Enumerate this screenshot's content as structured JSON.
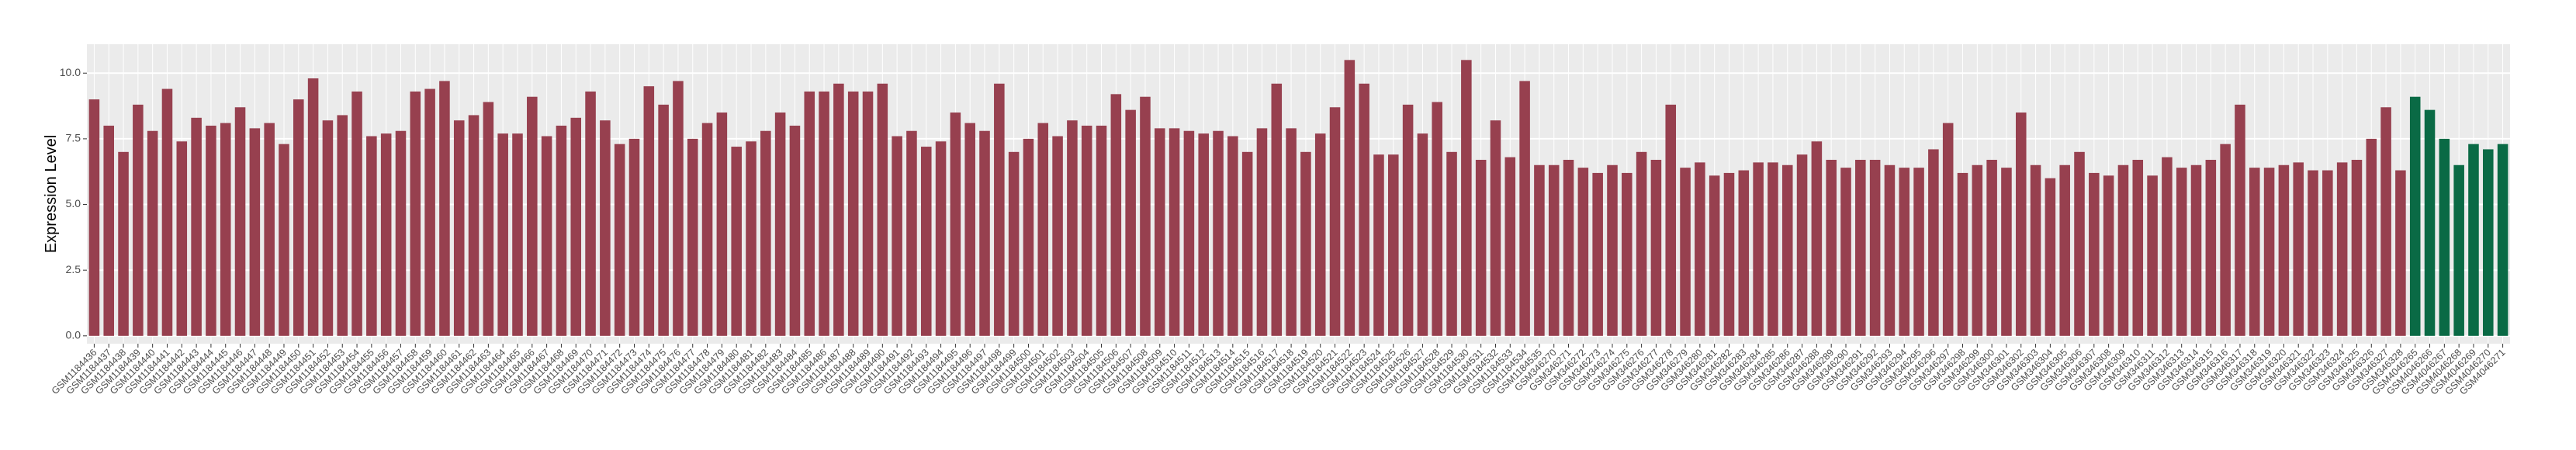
{
  "chart_data": {
    "type": "bar",
    "y_label": "Expression Level",
    "ylim": [
      -0.3,
      11.1
    ],
    "yticks": [
      {
        "value": 0,
        "label": "0.0"
      },
      {
        "value": 2.5,
        "label": "2.5"
      },
      {
        "value": 5,
        "label": "5.0"
      },
      {
        "value": 7.5,
        "label": "7.5"
      },
      {
        "value": 10,
        "label": "10.0"
      }
    ],
    "grid": true,
    "categories": [
      "GSM1184436",
      "GSM1184437",
      "GSM1184438",
      "GSM1184439",
      "GSM1184440",
      "GSM1184441",
      "GSM1184442",
      "GSM1184443",
      "GSM1184444",
      "GSM1184445",
      "GSM1184446",
      "GSM1184447",
      "GSM1184448",
      "GSM1184449",
      "GSM1184450",
      "GSM1184451",
      "GSM1184452",
      "GSM1184453",
      "GSM1184454",
      "GSM1184455",
      "GSM1184456",
      "GSM1184457",
      "GSM1184458",
      "GSM1184459",
      "GSM1184460",
      "GSM1184461",
      "GSM1184462",
      "GSM1184463",
      "GSM1184464",
      "GSM1184465",
      "GSM1184466",
      "GSM1184467",
      "GSM1184468",
      "GSM1184469",
      "GSM1184470",
      "GSM1184471",
      "GSM1184472",
      "GSM1184473",
      "GSM1184474",
      "GSM1184475",
      "GSM1184476",
      "GSM1184477",
      "GSM1184478",
      "GSM1184479",
      "GSM1184480",
      "GSM1184481",
      "GSM1184482",
      "GSM1184483",
      "GSM1184484",
      "GSM1184485",
      "GSM1184486",
      "GSM1184487",
      "GSM1184488",
      "GSM1184489",
      "GSM1184490",
      "GSM1184491",
      "GSM1184492",
      "GSM1184493",
      "GSM1184494",
      "GSM1184495",
      "GSM1184496",
      "GSM1184497",
      "GSM1184498",
      "GSM1184499",
      "GSM1184500",
      "GSM1184501",
      "GSM1184502",
      "GSM1184503",
      "GSM1184504",
      "GSM1184505",
      "GSM1184506",
      "GSM1184507",
      "GSM1184508",
      "GSM1184509",
      "GSM1184510",
      "GSM1184511",
      "GSM1184512",
      "GSM1184513",
      "GSM1184514",
      "GSM1184515",
      "GSM1184516",
      "GSM1184517",
      "GSM1184518",
      "GSM1184519",
      "GSM1184520",
      "GSM1184521",
      "GSM1184522",
      "GSM1184523",
      "GSM1184524",
      "GSM1184525",
      "GSM1184526",
      "GSM1184527",
      "GSM1184528",
      "GSM1184529",
      "GSM1184530",
      "GSM1184531",
      "GSM1184532",
      "GSM1184533",
      "GSM1184534",
      "GSM1184535",
      "GSM346270",
      "GSM346271",
      "GSM346272",
      "GSM346273",
      "GSM346274",
      "GSM346275",
      "GSM346276",
      "GSM346277",
      "GSM346278",
      "GSM346279",
      "GSM346280",
      "GSM346281",
      "GSM346282",
      "GSM346283",
      "GSM346284",
      "GSM346285",
      "GSM346286",
      "GSM346287",
      "GSM346288",
      "GSM346289",
      "GSM346290",
      "GSM346291",
      "GSM346292",
      "GSM346293",
      "GSM346294",
      "GSM346295",
      "GSM346296",
      "GSM346297",
      "GSM346298",
      "GSM346299",
      "GSM346300",
      "GSM346301",
      "GSM346302",
      "GSM346303",
      "GSM346304",
      "GSM346305",
      "GSM346306",
      "GSM346307",
      "GSM346308",
      "GSM346309",
      "GSM346310",
      "GSM346311",
      "GSM346312",
      "GSM346313",
      "GSM346314",
      "GSM346315",
      "GSM346316",
      "GSM346317",
      "GSM346318",
      "GSM346319",
      "GSM346320",
      "GSM346321",
      "GSM346322",
      "GSM346323",
      "GSM346324",
      "GSM346325",
      "GSM346326",
      "GSM346327",
      "GSM346328",
      "GSM4046265",
      "GSM4046266",
      "GSM4046267",
      "GSM4046268",
      "GSM4046269",
      "GSM4046270",
      "GSM4046271"
    ],
    "values": [
      9.0,
      8.0,
      7.0,
      8.8,
      7.8,
      9.4,
      7.4,
      8.3,
      8.0,
      8.1,
      8.7,
      7.9,
      8.1,
      7.3,
      9.0,
      9.8,
      8.2,
      8.4,
      9.3,
      7.6,
      7.7,
      7.8,
      9.3,
      9.4,
      9.7,
      8.2,
      8.4,
      8.9,
      7.7,
      7.7,
      9.1,
      7.6,
      8.0,
      8.3,
      9.3,
      8.2,
      7.3,
      7.5,
      9.5,
      8.8,
      9.7,
      7.5,
      8.1,
      8.5,
      7.2,
      7.4,
      7.8,
      8.5,
      8.0,
      9.3,
      9.3,
      9.6,
      9.3,
      9.3,
      9.6,
      7.6,
      7.8,
      7.2,
      7.4,
      8.5,
      8.1,
      7.8,
      9.6,
      7.0,
      7.5,
      8.1,
      7.6,
      8.2,
      8.0,
      8.0,
      9.2,
      8.6,
      9.1,
      7.9,
      7.9,
      7.8,
      7.7,
      7.8,
      7.6,
      7.0,
      7.9,
      9.6,
      7.9,
      7.0,
      7.7,
      8.7,
      10.5,
      9.6,
      6.9,
      6.9,
      8.8,
      7.7,
      8.9,
      7.0,
      10.5,
      6.7,
      8.2,
      6.8,
      9.7,
      6.5,
      6.5,
      6.7,
      6.4,
      6.2,
      6.5,
      6.2,
      7.0,
      6.7,
      8.8,
      6.4,
      6.6,
      6.1,
      6.2,
      6.3,
      6.6,
      6.6,
      6.5,
      6.9,
      7.4,
      6.7,
      6.4,
      6.7,
      6.7,
      6.5,
      6.4,
      6.4,
      7.1,
      8.1,
      6.2,
      6.5,
      6.7,
      6.4,
      8.5,
      6.5,
      6.0,
      6.5,
      7.0,
      6.2,
      6.1,
      6.5,
      6.7,
      6.1,
      6.8,
      6.4,
      6.5,
      6.7,
      7.3,
      8.8,
      6.4,
      6.4,
      6.5,
      6.6,
      6.3,
      6.3,
      6.6,
      6.7,
      7.5,
      8.7,
      6.3,
      9.1,
      8.6,
      7.5,
      6.5,
      7.3,
      7.1,
      7.3
    ],
    "colors": [
      "#97404f",
      "#97404f",
      "#97404f",
      "#97404f",
      "#97404f",
      "#97404f",
      "#97404f",
      "#97404f",
      "#97404f",
      "#97404f",
      "#97404f",
      "#97404f",
      "#97404f",
      "#97404f",
      "#97404f",
      "#97404f",
      "#97404f",
      "#97404f",
      "#97404f",
      "#97404f",
      "#97404f",
      "#97404f",
      "#97404f",
      "#97404f",
      "#97404f",
      "#97404f",
      "#97404f",
      "#97404f",
      "#97404f",
      "#97404f",
      "#97404f",
      "#97404f",
      "#97404f",
      "#97404f",
      "#97404f",
      "#97404f",
      "#97404f",
      "#97404f",
      "#97404f",
      "#97404f",
      "#97404f",
      "#97404f",
      "#97404f",
      "#97404f",
      "#97404f",
      "#97404f",
      "#97404f",
      "#97404f",
      "#97404f",
      "#97404f",
      "#97404f",
      "#97404f",
      "#97404f",
      "#97404f",
      "#97404f",
      "#97404f",
      "#97404f",
      "#97404f",
      "#97404f",
      "#97404f",
      "#97404f",
      "#97404f",
      "#97404f",
      "#97404f",
      "#97404f",
      "#97404f",
      "#97404f",
      "#97404f",
      "#97404f",
      "#97404f",
      "#97404f",
      "#97404f",
      "#97404f",
      "#97404f",
      "#97404f",
      "#97404f",
      "#97404f",
      "#97404f",
      "#97404f",
      "#97404f",
      "#97404f",
      "#97404f",
      "#97404f",
      "#97404f",
      "#97404f",
      "#97404f",
      "#97404f",
      "#97404f",
      "#97404f",
      "#97404f",
      "#97404f",
      "#97404f",
      "#97404f",
      "#97404f",
      "#97404f",
      "#97404f",
      "#97404f",
      "#97404f",
      "#97404f",
      "#97404f",
      "#97404f",
      "#97404f",
      "#97404f",
      "#97404f",
      "#97404f",
      "#97404f",
      "#97404f",
      "#97404f",
      "#97404f",
      "#97404f",
      "#97404f",
      "#97404f",
      "#97404f",
      "#97404f",
      "#97404f",
      "#97404f",
      "#97404f",
      "#97404f",
      "#97404f",
      "#97404f",
      "#97404f",
      "#97404f",
      "#97404f",
      "#97404f",
      "#97404f",
      "#97404f",
      "#97404f",
      "#97404f",
      "#97404f",
      "#97404f",
      "#97404f",
      "#97404f",
      "#97404f",
      "#97404f",
      "#97404f",
      "#97404f",
      "#97404f",
      "#97404f",
      "#97404f",
      "#97404f",
      "#97404f",
      "#97404f",
      "#97404f",
      "#97404f",
      "#97404f",
      "#97404f",
      "#97404f",
      "#97404f",
      "#97404f",
      "#97404f",
      "#97404f",
      "#97404f",
      "#97404f",
      "#97404f",
      "#97404f",
      "#97404f",
      "#97404f",
      "#97404f",
      "#97404f",
      "#0a6a45",
      "#0a6a45",
      "#0a6a45",
      "#0a6a45",
      "#0a6a45",
      "#0a6a45",
      "#0a6a45"
    ]
  }
}
